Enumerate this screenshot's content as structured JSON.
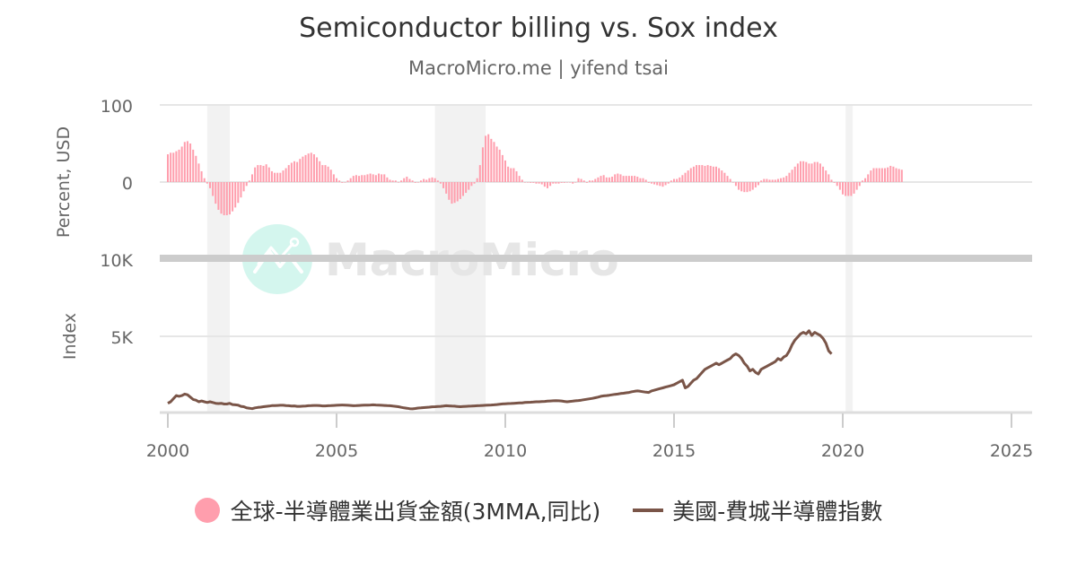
{
  "title": "Semiconductor billing vs. Sox index",
  "subtitle": "MacroMicro.me | yifend tsai",
  "watermark": "MacroMicro",
  "legend": [
    {
      "label": "全球-半導體業出貨金額(3MMA,同比)",
      "color": "#FF9EAD",
      "shape": "circle"
    },
    {
      "label": "美國-費城半導體指數",
      "color": "#7A5548",
      "shape": "line"
    }
  ],
  "chart_data": [
    {
      "type": "bar",
      "title": "Semiconductor billing vs. Sox index",
      "series_name": "全球-半導體業出貨金額(3MMA,同比)",
      "ylabel": "Percent, USD",
      "yticks": [
        "100",
        "0"
      ],
      "ylim": [
        -45,
        100
      ],
      "grid": true,
      "x_start": "2000-01",
      "frequency": "monthly",
      "color": "#FF9EAD",
      "values": [
        36,
        38,
        38,
        40,
        42,
        46,
        52,
        53,
        50,
        42,
        34,
        24,
        14,
        5,
        -2,
        -8,
        -18,
        -28,
        -36,
        -41,
        -43,
        -43,
        -42,
        -38,
        -33,
        -27,
        -20,
        -12,
        -5,
        2,
        10,
        19,
        22,
        22,
        21,
        23,
        19,
        14,
        12,
        12,
        12,
        15,
        18,
        22,
        25,
        27,
        26,
        30,
        33,
        35,
        37,
        38,
        36,
        32,
        27,
        22,
        22,
        20,
        16,
        10,
        5,
        2,
        -1,
        0,
        2,
        5,
        8,
        9,
        8,
        9,
        9,
        10,
        11,
        10,
        9,
        11,
        10,
        10,
        6,
        3,
        2,
        2,
        0,
        2,
        5,
        7,
        4,
        2,
        -1,
        0,
        2,
        4,
        3,
        5,
        6,
        5,
        2,
        -2,
        -8,
        -15,
        -23,
        -28,
        -27,
        -25,
        -22,
        -18,
        -14,
        -10,
        -5,
        -2,
        5,
        22,
        45,
        60,
        62,
        56,
        52,
        46,
        42,
        35,
        28,
        20,
        18,
        18,
        14,
        8,
        3,
        0,
        0,
        -1,
        -1,
        -2,
        -2,
        -3,
        -6,
        -8,
        -5,
        -2,
        -2,
        -2,
        -1,
        -1,
        0,
        0,
        -2,
        0,
        5,
        4,
        2,
        -1,
        2,
        2,
        4,
        6,
        8,
        9,
        6,
        6,
        7,
        10,
        11,
        10,
        8,
        8,
        8,
        8,
        8,
        7,
        5,
        5,
        3,
        -1,
        -2,
        -3,
        -4,
        -5,
        -6,
        -4,
        -2,
        2,
        4,
        4,
        6,
        9,
        12,
        15,
        18,
        20,
        22,
        22,
        22,
        21,
        22,
        21,
        20,
        20,
        18,
        15,
        12,
        8,
        4,
        0,
        -5,
        -10,
        -12,
        -13,
        -13,
        -12,
        -10,
        -7,
        -4,
        2,
        4,
        4,
        3,
        3,
        3,
        4,
        5,
        6,
        8,
        12,
        16,
        20,
        24,
        27,
        27,
        26,
        24,
        24,
        26,
        26,
        24,
        20,
        15,
        10,
        3,
        -1,
        -5,
        -10,
        -16,
        -18,
        -18,
        -18,
        -15,
        -10,
        -5,
        2,
        5,
        10,
        15,
        18,
        18,
        18,
        18,
        18,
        19,
        21,
        20,
        18,
        17,
        16
      ]
    },
    {
      "type": "line",
      "series_name": "美國-費城半導體指數",
      "ylabel": "Index",
      "yticks": [
        "10K",
        "5K"
      ],
      "ylim": [
        0,
        10000
      ],
      "grid": true,
      "x_start": "2000-01",
      "frequency": "monthly",
      "color": "#7A5548",
      "values": [
        600,
        700,
        900,
        1100,
        1050,
        1100,
        1200,
        1150,
        1000,
        850,
        800,
        700,
        750,
        700,
        650,
        700,
        650,
        600,
        580,
        600,
        550,
        550,
        600,
        520,
        500,
        480,
        400,
        380,
        300,
        280,
        250,
        300,
        330,
        350,
        380,
        400,
        420,
        450,
        450,
        460,
        470,
        470,
        450,
        440,
        420,
        430,
        400,
        400,
        410,
        420,
        440,
        450,
        460,
        460,
        450,
        430,
        430,
        440,
        450,
        460,
        470,
        480,
        490,
        480,
        470,
        460,
        440,
        450,
        460,
        470,
        480,
        480,
        490,
        500,
        490,
        480,
        470,
        460,
        450,
        440,
        420,
        400,
        380,
        340,
        300,
        280,
        250,
        240,
        260,
        290,
        300,
        320,
        340,
        350,
        370,
        380,
        390,
        400,
        420,
        440,
        430,
        420,
        410,
        390,
        380,
        390,
        400,
        410,
        420,
        430,
        440,
        450,
        460,
        470,
        480,
        490,
        500,
        520,
        540,
        560,
        570,
        580,
        590,
        600,
        610,
        620,
        630,
        650,
        660,
        670,
        680,
        700,
        700,
        710,
        720,
        740,
        750,
        760,
        770,
        760,
        750,
        720,
        700,
        720,
        740,
        760,
        780,
        800,
        830,
        860,
        890,
        920,
        960,
        1000,
        1050,
        1080,
        1100,
        1120,
        1150,
        1180,
        1200,
        1230,
        1250,
        1280,
        1300,
        1350,
        1380,
        1400,
        1380,
        1350,
        1320,
        1300,
        1400,
        1450,
        1500,
        1550,
        1600,
        1650,
        1700,
        1750,
        1800,
        1900,
        2000,
        2100,
        1600,
        1700,
        1900,
        2100,
        2200,
        2400,
        2600,
        2800,
        2900,
        3000,
        3100,
        3200,
        3100,
        3200,
        3300,
        3400,
        3500,
        3700,
        3800,
        3700,
        3500,
        3200,
        3000,
        2700,
        2800,
        2600,
        2500,
        2800,
        2900,
        3000,
        3100,
        3200,
        3300,
        3500,
        3400,
        3600,
        3700,
        4000,
        4400,
        4700,
        4900,
        5100,
        5200,
        5100,
        5300,
        5000,
        5200,
        5100,
        5000,
        4800,
        4500,
        4000,
        3800
      ]
    }
  ],
  "axes": {
    "top_panel": {
      "ylabel": "Percent, USD",
      "ticks": [
        "100",
        "0"
      ]
    },
    "bottom_panel": {
      "ylabel": "Index",
      "ticks": [
        "10K",
        "5K"
      ]
    },
    "x_ticks": [
      "2000",
      "2005",
      "2010",
      "2015",
      "2020",
      "2025"
    ]
  },
  "recessions": [
    {
      "start": "2001-03",
      "end": "2001-11"
    },
    {
      "start": "2007-12",
      "end": "2009-06"
    },
    {
      "start": "2020-02",
      "end": "2020-04"
    }
  ]
}
